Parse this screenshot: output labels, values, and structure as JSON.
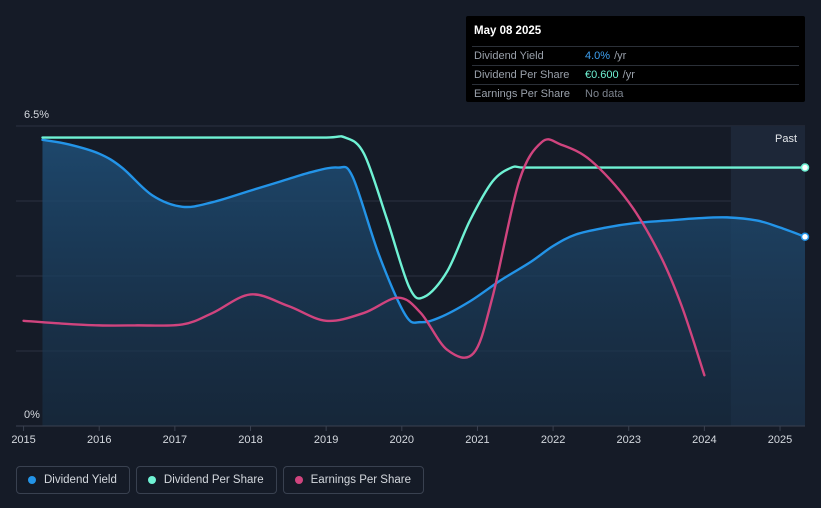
{
  "tooltip": {
    "date": "May 08 2025",
    "rows": [
      {
        "name": "Dividend Yield",
        "value": "4.0%",
        "unit": "/yr",
        "color": "#3ea0f0"
      },
      {
        "name": "Dividend Per Share",
        "value": "€0.600",
        "unit": "/yr",
        "color": "#6ff2d4"
      },
      {
        "name": "Earnings Per Share",
        "value": "No data",
        "unit": "",
        "color": "#7d848f"
      }
    ]
  },
  "legend": [
    {
      "label": "Dividend Yield",
      "color": "#2394e8"
    },
    {
      "label": "Dividend Per Share",
      "color": "#6ff2d4"
    },
    {
      "label": "Earnings Per Share",
      "color": "#d0447e"
    }
  ],
  "chart_data": {
    "type": "line",
    "y_top_label": "6.5%",
    "y_bottom_label": "0%",
    "ylim": [
      0,
      6.5
    ],
    "xlim": [
      2014.9,
      2025.33
    ],
    "x_ticks": [
      "2015",
      "2016",
      "2017",
      "2018",
      "2019",
      "2020",
      "2021",
      "2022",
      "2023",
      "2024",
      "2025"
    ],
    "past_label": "Past",
    "past_start": 2024.35,
    "grid": true,
    "series": [
      {
        "name": "Dividend Yield",
        "color": "#2394e8",
        "area": true,
        "x": [
          2015.25,
          2015.6,
          2016.0,
          2016.3,
          2016.7,
          2017.1,
          2017.5,
          2018.0,
          2018.4,
          2018.8,
          2019.15,
          2019.35,
          2019.7,
          2020.05,
          2020.25,
          2020.5,
          2020.9,
          2021.3,
          2021.7,
          2022.0,
          2022.3,
          2022.7,
          2023.1,
          2023.5,
          2023.9,
          2024.3,
          2024.7,
          2025.0,
          2025.33
        ],
        "y": [
          6.2,
          6.1,
          5.9,
          5.6,
          5.0,
          4.75,
          4.85,
          5.1,
          5.3,
          5.5,
          5.6,
          5.4,
          3.7,
          2.4,
          2.25,
          2.35,
          2.7,
          3.15,
          3.55,
          3.9,
          4.15,
          4.3,
          4.4,
          4.45,
          4.5,
          4.52,
          4.45,
          4.3,
          4.1
        ]
      },
      {
        "name": "Dividend Per Share",
        "color": "#6ff2d4",
        "x": [
          2015.25,
          2016.0,
          2017.0,
          2018.0,
          2019.0,
          2019.25,
          2019.5,
          2019.8,
          2020.1,
          2020.3,
          2020.6,
          2020.9,
          2021.2,
          2021.45,
          2021.6,
          2022.0,
          2023.0,
          2024.0,
          2025.33
        ],
        "y": [
          6.25,
          6.25,
          6.25,
          6.25,
          6.25,
          6.25,
          5.9,
          4.5,
          3.0,
          2.8,
          3.35,
          4.45,
          5.3,
          5.6,
          5.6,
          5.6,
          5.6,
          5.6,
          5.6
        ]
      },
      {
        "name": "Earnings Per Share",
        "color": "#d0447e",
        "x": [
          2015.0,
          2015.5,
          2016.0,
          2016.5,
          2017.1,
          2017.5,
          2018.0,
          2018.5,
          2019.0,
          2019.5,
          2019.95,
          2020.25,
          2020.6,
          2020.95,
          2021.2,
          2021.55,
          2021.85,
          2022.1,
          2022.5,
          2023.0,
          2023.4,
          2023.7,
          2024.0
        ],
        "y": [
          2.28,
          2.22,
          2.18,
          2.18,
          2.2,
          2.45,
          2.85,
          2.6,
          2.28,
          2.45,
          2.78,
          2.45,
          1.65,
          1.58,
          2.8,
          5.3,
          6.15,
          6.1,
          5.75,
          4.85,
          3.75,
          2.6,
          1.1
        ]
      }
    ]
  }
}
